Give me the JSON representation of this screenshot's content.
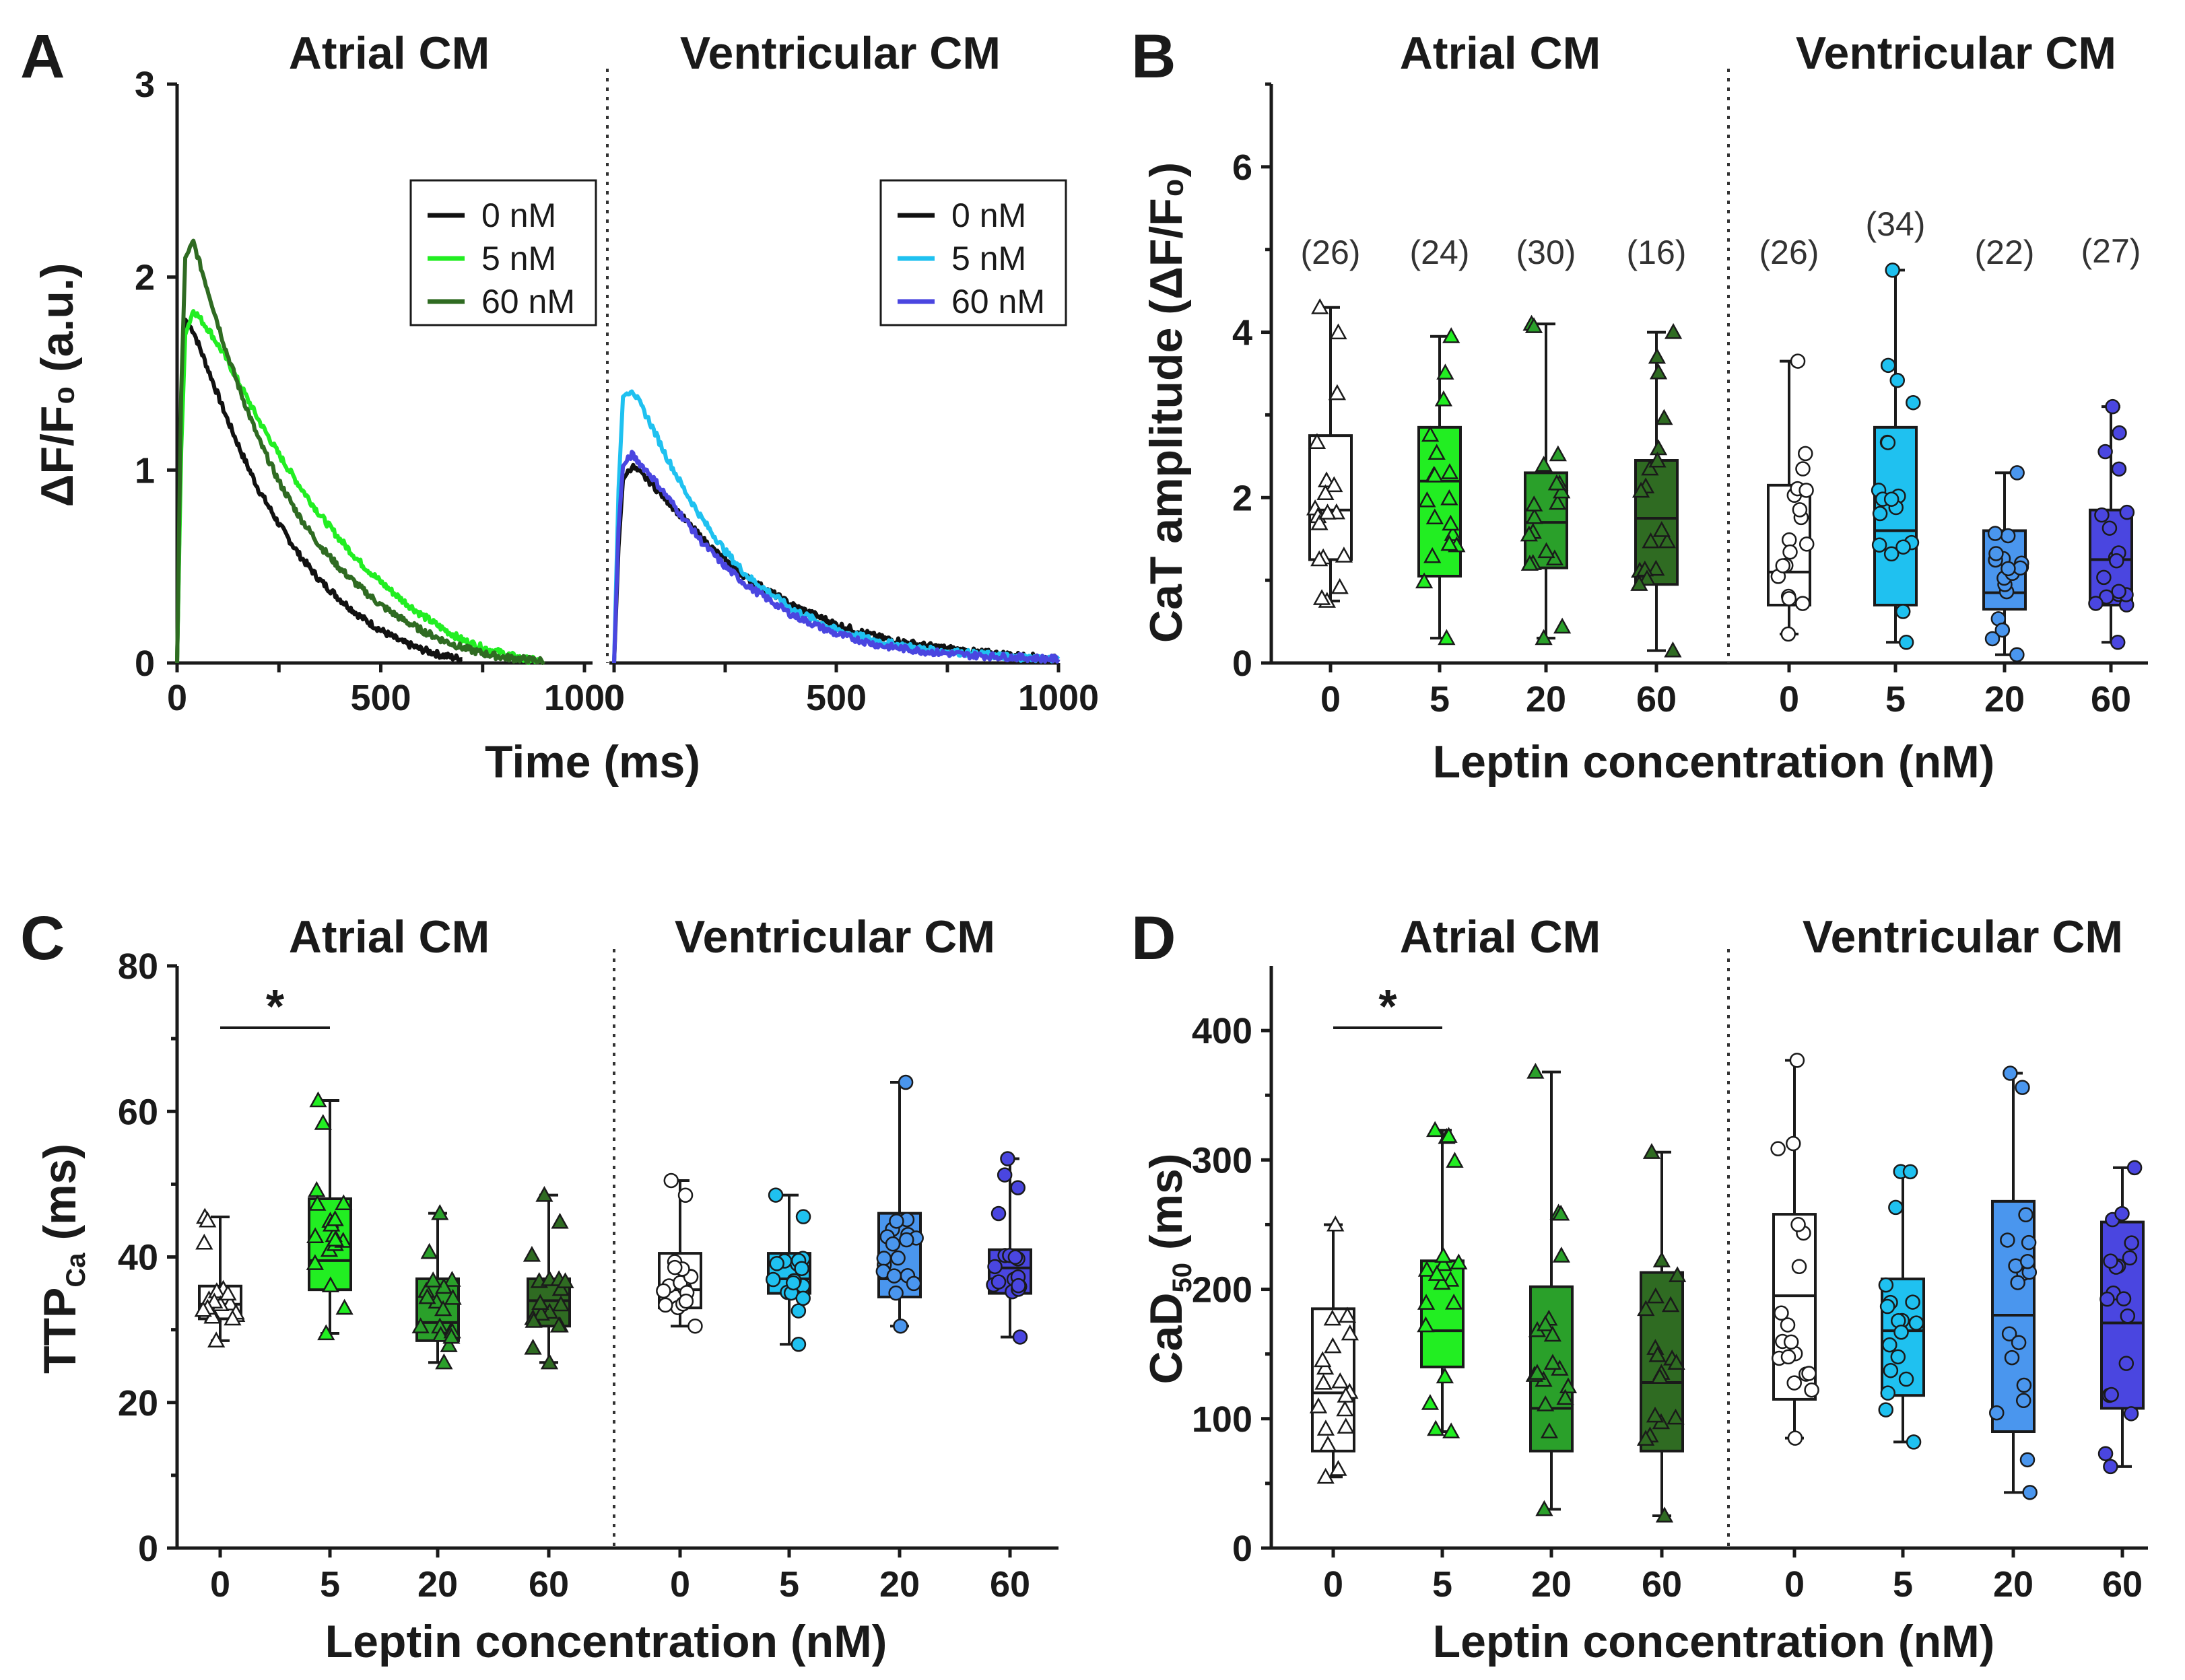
{
  "figure": {
    "colors": {
      "white": "#ffffff",
      "lgreen": "#22ee22",
      "green": "#2aa02a",
      "dgreen": "#2f6b22",
      "cyan": "#1fc1f0",
      "mblue": "#4a96ee",
      "dblue": "#4a46e0",
      "black": "#111111"
    }
  },
  "panelA": {
    "label": "A",
    "titles": [
      "Atrial CM",
      "Ventricular CM"
    ],
    "ylabel": "ΔF/F₀ (a.u.)",
    "xlabel": "Time (ms)",
    "yticks": [
      "0",
      "1",
      "2",
      "3"
    ],
    "xticks_left": [
      "0",
      "500",
      "1000"
    ],
    "xticks_right": [
      "0",
      "500",
      "1000"
    ],
    "legend_left": [
      {
        "label": "0 nM",
        "color": "#111111"
      },
      {
        "label": "5 nM",
        "color": "#22ee22"
      },
      {
        "label": "60 nM",
        "color": "#2f6b22"
      }
    ],
    "legend_right": [
      {
        "label": "0 nM",
        "color": "#111111"
      },
      {
        "label": "5 nM",
        "color": "#1fc1f0"
      },
      {
        "label": "60 nM",
        "color": "#4a46e0"
      }
    ]
  },
  "chart_data": [
    {
      "panel": "A-atrial",
      "type": "line",
      "title": "Atrial CM",
      "xlabel": "Time (ms)",
      "ylabel": "ΔF/F₀ (a.u.)",
      "xlim": [
        0,
        1000
      ],
      "ylim": [
        0,
        3
      ],
      "series": [
        {
          "name": "0 nM",
          "color": "#111111",
          "x": [
            0,
            10,
            20,
            40,
            80,
            120,
            160,
            200,
            250,
            300,
            350,
            400,
            450,
            500,
            550,
            600,
            650,
            700
          ],
          "y": [
            0,
            1.2,
            1.78,
            1.72,
            1.5,
            1.28,
            1.08,
            0.9,
            0.72,
            0.56,
            0.43,
            0.33,
            0.24,
            0.17,
            0.11,
            0.07,
            0.04,
            0.02
          ]
        },
        {
          "name": "5 nM",
          "color": "#22ee22",
          "x": [
            0,
            10,
            20,
            40,
            80,
            120,
            160,
            200,
            250,
            300,
            350,
            400,
            450,
            500,
            550,
            600,
            650,
            700,
            750,
            800,
            850,
            900
          ],
          "y": [
            0,
            1.1,
            1.7,
            1.83,
            1.72,
            1.58,
            1.42,
            1.26,
            1.08,
            0.92,
            0.77,
            0.64,
            0.52,
            0.42,
            0.33,
            0.25,
            0.18,
            0.12,
            0.08,
            0.05,
            0.02,
            0.01
          ]
        },
        {
          "name": "60 nM",
          "color": "#2f6b22",
          "x": [
            0,
            10,
            20,
            40,
            80,
            120,
            160,
            200,
            250,
            300,
            350,
            400,
            450,
            500,
            550,
            600,
            650,
            700,
            750,
            800,
            850,
            900
          ],
          "y": [
            0,
            1.4,
            2.1,
            2.18,
            1.9,
            1.62,
            1.38,
            1.16,
            0.94,
            0.76,
            0.61,
            0.49,
            0.39,
            0.3,
            0.23,
            0.17,
            0.12,
            0.08,
            0.05,
            0.03,
            0.02,
            0.01
          ]
        }
      ]
    },
    {
      "panel": "A-ventricular",
      "type": "line",
      "title": "Ventricular CM",
      "xlabel": "Time (ms)",
      "ylabel": "ΔF/F₀ (a.u.)",
      "xlim": [
        0,
        1000
      ],
      "ylim": [
        0,
        3
      ],
      "series": [
        {
          "name": "0 nM",
          "color": "#111111",
          "x": [
            0,
            10,
            20,
            40,
            80,
            120,
            160,
            200,
            250,
            300,
            400,
            500,
            600,
            700,
            800,
            900,
            1000
          ],
          "y": [
            0,
            0.6,
            0.95,
            1.02,
            0.94,
            0.84,
            0.74,
            0.64,
            0.53,
            0.44,
            0.3,
            0.2,
            0.13,
            0.09,
            0.06,
            0.04,
            0.02
          ]
        },
        {
          "name": "5 nM",
          "color": "#1fc1f0",
          "x": [
            0,
            10,
            20,
            40,
            80,
            120,
            160,
            200,
            250,
            300,
            400,
            500,
            600,
            700,
            800,
            900,
            1000
          ],
          "y": [
            0,
            0.9,
            1.38,
            1.42,
            1.25,
            1.06,
            0.89,
            0.74,
            0.58,
            0.45,
            0.28,
            0.17,
            0.11,
            0.07,
            0.05,
            0.03,
            0.02
          ]
        },
        {
          "name": "60 nM",
          "color": "#4a46e0",
          "x": [
            0,
            10,
            20,
            40,
            80,
            120,
            160,
            200,
            250,
            300,
            400,
            500,
            600,
            700,
            800,
            900,
            1000
          ],
          "y": [
            0,
            0.7,
            1.02,
            1.08,
            0.98,
            0.86,
            0.74,
            0.62,
            0.5,
            0.4,
            0.25,
            0.15,
            0.09,
            0.06,
            0.04,
            0.03,
            0.02
          ]
        }
      ]
    },
    {
      "panel": "B",
      "type": "box",
      "ylabel": "CaT amplitude (ΔF/F₀)",
      "xlabel": "Leptin concentration (nM)",
      "ylim": [
        0,
        7
      ],
      "yticks": [
        0,
        2,
        4,
        6
      ],
      "groups": [
        {
          "title": "Atrial CM",
          "categories": [
            "0",
            "5",
            "20",
            "60"
          ]
        },
        {
          "title": "Ventricular CM",
          "categories": [
            "0",
            "5",
            "20",
            "60"
          ]
        }
      ],
      "boxes": [
        {
          "cat": "0",
          "color": "#ffffff",
          "marker": "triangle",
          "min": 0.75,
          "q1": 1.25,
          "median": 1.85,
          "q3": 2.75,
          "max": 4.3,
          "n": "(26)"
        },
        {
          "cat": "5",
          "color": "#22ee22",
          "marker": "triangle",
          "min": 0.3,
          "q1": 1.05,
          "median": 2.2,
          "q3": 2.85,
          "max": 3.95,
          "n": "(24)"
        },
        {
          "cat": "20",
          "color": "#2aa02a",
          "marker": "triangle",
          "min": 0.3,
          "q1": 1.15,
          "median": 1.7,
          "q3": 2.3,
          "max": 4.1,
          "n": "(30)"
        },
        {
          "cat": "60",
          "color": "#2f6b22",
          "marker": "triangle",
          "min": 0.15,
          "q1": 0.95,
          "median": 1.75,
          "q3": 2.45,
          "max": 4.0,
          "n": "(16)"
        },
        {
          "cat": "0",
          "color": "#ffffff",
          "marker": "circle",
          "min": 0.35,
          "q1": 0.7,
          "median": 1.1,
          "q3": 2.15,
          "max": 3.65,
          "n": "(26)"
        },
        {
          "cat": "5",
          "color": "#1fc1f0",
          "marker": "circle",
          "min": 0.25,
          "q1": 0.7,
          "median": 1.6,
          "q3": 2.85,
          "max": 4.75,
          "n": "(34)"
        },
        {
          "cat": "20",
          "color": "#4a96ee",
          "marker": "circle",
          "min": 0.1,
          "q1": 0.65,
          "median": 0.85,
          "q3": 1.6,
          "max": 2.3,
          "n": "(22)"
        },
        {
          "cat": "60",
          "color": "#4a46e0",
          "marker": "circle",
          "min": 0.25,
          "q1": 0.7,
          "median": 1.25,
          "q3": 1.85,
          "max": 3.1,
          "n": "(27)"
        }
      ]
    },
    {
      "panel": "C",
      "type": "box",
      "ylabel": "TTP_Ca (ms)",
      "xlabel": "Leptin concentration (nM)",
      "ylim": [
        0,
        80
      ],
      "yticks": [
        0,
        20,
        40,
        60,
        80
      ],
      "groups": [
        {
          "title": "Atrial CM",
          "categories": [
            "0",
            "5",
            "20",
            "60"
          ]
        },
        {
          "title": "Ventricular CM",
          "categories": [
            "0",
            "5",
            "20",
            "60"
          ]
        }
      ],
      "significance": [
        {
          "from": "0",
          "to": "5",
          "label": "*"
        }
      ],
      "boxes": [
        {
          "cat": "0",
          "color": "#ffffff",
          "marker": "triangle",
          "min": 28.5,
          "q1": 31.5,
          "median": 33.5,
          "q3": 36,
          "max": 45.5
        },
        {
          "cat": "5",
          "color": "#22ee22",
          "marker": "triangle",
          "min": 29.5,
          "q1": 35.5,
          "median": 39.5,
          "q3": 48,
          "max": 61.5
        },
        {
          "cat": "20",
          "color": "#2aa02a",
          "marker": "triangle",
          "min": 25.5,
          "q1": 28.5,
          "median": 31,
          "q3": 37,
          "max": 46
        },
        {
          "cat": "60",
          "color": "#2f6b22",
          "marker": "triangle",
          "min": 25.5,
          "q1": 30.5,
          "median": 34,
          "q3": 37,
          "max": 48.5
        },
        {
          "cat": "0",
          "color": "#ffffff",
          "marker": "circle",
          "min": 30.5,
          "q1": 33,
          "median": 35.5,
          "q3": 40.5,
          "max": 50.5
        },
        {
          "cat": "5",
          "color": "#1fc1f0",
          "marker": "circle",
          "min": 28,
          "q1": 35,
          "median": 37,
          "q3": 40.5,
          "max": 48.5
        },
        {
          "cat": "20",
          "color": "#4a96ee",
          "marker": "circle",
          "min": 30.5,
          "q1": 34.5,
          "median": 37,
          "q3": 46,
          "max": 64
        },
        {
          "cat": "60",
          "color": "#4a46e0",
          "marker": "circle",
          "min": 29,
          "q1": 35,
          "median": 38.5,
          "q3": 41,
          "max": 53.5
        }
      ]
    },
    {
      "panel": "D",
      "type": "box",
      "ylabel": "CaD_50 (ms)",
      "xlabel": "Leptin concentration (nM)",
      "ylim": [
        0,
        450
      ],
      "yticks": [
        0,
        100,
        200,
        300,
        400
      ],
      "groups": [
        {
          "title": "Atrial CM",
          "categories": [
            "0",
            "5",
            "20",
            "60"
          ]
        },
        {
          "title": "Ventricular CM",
          "categories": [
            "0",
            "5",
            "20",
            "60"
          ]
        }
      ],
      "significance": [
        {
          "from": "0",
          "to": "5",
          "label": "*"
        }
      ],
      "boxes": [
        {
          "cat": "0",
          "color": "#ffffff",
          "marker": "triangle",
          "min": 55,
          "q1": 75,
          "median": 120,
          "q3": 185,
          "max": 250
        },
        {
          "cat": "5",
          "color": "#22ee22",
          "marker": "triangle",
          "min": 90,
          "q1": 140,
          "median": 168,
          "q3": 222,
          "max": 323
        },
        {
          "cat": "20",
          "color": "#2aa02a",
          "marker": "triangle",
          "min": 30,
          "q1": 75,
          "median": 108,
          "q3": 202,
          "max": 368
        },
        {
          "cat": "60",
          "color": "#2f6b22",
          "marker": "triangle",
          "min": 25,
          "q1": 75,
          "median": 128,
          "q3": 213,
          "max": 306
        },
        {
          "cat": "0",
          "color": "#ffffff",
          "marker": "circle",
          "min": 85,
          "q1": 115,
          "median": 195,
          "q3": 258,
          "max": 377
        },
        {
          "cat": "5",
          "color": "#1fc1f0",
          "marker": "circle",
          "min": 82,
          "q1": 118,
          "median": 168,
          "q3": 208,
          "max": 291
        },
        {
          "cat": "20",
          "color": "#4a96ee",
          "marker": "circle",
          "min": 43,
          "q1": 90,
          "median": 180,
          "q3": 268,
          "max": 367
        },
        {
          "cat": "60",
          "color": "#4a46e0",
          "marker": "circle",
          "min": 63,
          "q1": 108,
          "median": 174,
          "q3": 252,
          "max": 294
        }
      ]
    }
  ],
  "panelB": {
    "label": "B",
    "titles": [
      "Atrial CM",
      "Ventricular CM"
    ],
    "ylabel": "CaT amplitude (ΔF/F₀)",
    "xlabel": "Leptin concentration (nM)"
  },
  "panelC": {
    "label": "C",
    "titles": [
      "Atrial CM",
      "Ventricular CM"
    ],
    "ylabel_main": "TTP",
    "ylabel_sub": "Ca",
    "ylabel_tail": " (ms)",
    "xlabel": "Leptin concentration (nM)"
  },
  "panelD": {
    "label": "D",
    "titles": [
      "Atrial CM",
      "Ventricular CM"
    ],
    "ylabel_main": "CaD",
    "ylabel_sub": "50",
    "ylabel_tail": " (ms)",
    "xlabel": "Leptin concentration (nM)"
  }
}
